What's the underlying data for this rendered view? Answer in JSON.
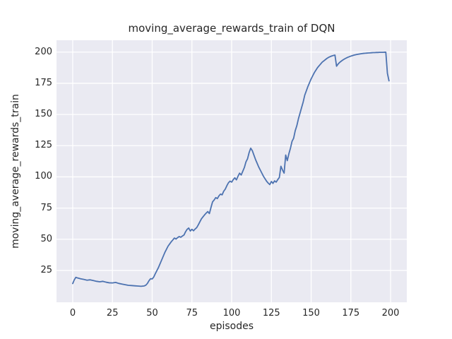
{
  "figure": {
    "background": "#ffffff",
    "axes_background": "#eaeaf2",
    "grid_color": "#ffffff",
    "text_color": "#262626",
    "line_color": "#4c72b0"
  },
  "chart_data": {
    "type": "line",
    "title": "moving_average_rewards_train of DQN",
    "xlabel": "episodes",
    "ylabel": "moving_average_rewards_train",
    "grid": true,
    "legend": false,
    "xlim": [
      -10.2,
      210.2
    ],
    "ylim": [
      -0.5,
      209.5
    ],
    "xticks": [
      0,
      25,
      50,
      75,
      100,
      125,
      150,
      175,
      200
    ],
    "yticks": [
      25,
      50,
      75,
      100,
      125,
      150,
      175,
      200
    ],
    "series": [
      {
        "name": "moving_average_rewards_train",
        "color": "#4c72b0",
        "x": [
          0,
          1,
          2,
          3,
          5,
          7,
          9,
          11,
          13,
          15,
          17,
          19,
          21,
          23,
          25,
          27,
          29,
          31,
          33,
          35,
          37,
          39,
          41,
          43,
          45,
          46,
          47,
          48,
          49,
          50,
          51,
          52,
          54,
          56,
          58,
          60,
          62,
          63,
          64,
          65,
          66,
          67,
          68,
          69,
          70,
          71,
          72,
          73,
          74,
          75,
          76,
          77,
          78,
          79,
          80,
          81,
          82,
          83,
          84,
          85,
          86,
          87,
          88,
          89,
          90,
          91,
          92,
          93,
          94,
          95,
          96,
          97,
          98,
          99,
          100,
          101,
          102,
          103,
          104,
          105,
          106,
          107,
          108,
          109,
          110,
          111,
          112,
          113,
          114,
          115,
          116,
          117,
          118,
          119,
          120,
          121,
          122,
          123,
          124,
          125,
          126,
          127,
          128,
          129,
          130,
          131,
          132,
          133,
          134,
          135,
          136,
          137,
          138,
          139,
          140,
          141,
          142,
          143,
          144,
          145,
          146,
          147,
          148,
          149,
          150,
          151,
          152,
          153,
          154,
          155,
          156,
          157,
          158,
          159,
          160,
          161,
          162,
          163,
          164,
          165,
          166,
          167,
          168,
          169,
          170,
          171,
          172,
          173,
          174,
          175,
          176,
          177,
          178,
          179,
          180,
          181,
          182,
          183,
          184,
          185,
          186,
          187,
          188,
          189,
          190,
          191,
          192,
          193,
          194,
          195,
          196,
          197,
          198,
          199
        ],
        "y": [
          14.5,
          17.5,
          19.5,
          19,
          18.3,
          17.8,
          17.2,
          17.5,
          16.9,
          16.3,
          15.9,
          16.3,
          15.6,
          15.1,
          15,
          15.4,
          14.6,
          14.1,
          13.6,
          13.1,
          12.9,
          12.7,
          12.5,
          12.3,
          12.6,
          13.2,
          14.6,
          16.8,
          18.4,
          18.2,
          19.8,
          22.5,
          27.5,
          33.5,
          39.5,
          44.5,
          48,
          49.5,
          51,
          50.2,
          51.3,
          52.2,
          51.6,
          52.6,
          53.4,
          56,
          58,
          59,
          56.6,
          58,
          56.8,
          58.2,
          59.3,
          61.5,
          64,
          66.4,
          68,
          69.6,
          71,
          72.2,
          70.6,
          75.5,
          80,
          81.5,
          83.4,
          82.6,
          84.8,
          86.2,
          85.6,
          88.5,
          90.2,
          93,
          95.3,
          96.6,
          95.8,
          97.8,
          99.3,
          97.6,
          100.5,
          103,
          101.5,
          104.5,
          107.5,
          112,
          114.5,
          119.5,
          123,
          121,
          117.5,
          114,
          111,
          108,
          105.5,
          103,
          100.5,
          98.5,
          96.5,
          95,
          93.8,
          96.3,
          94.8,
          96.8,
          95.8,
          97.8,
          99.5,
          108.5,
          105.5,
          103,
          117.5,
          113,
          118.5,
          123,
          128.5,
          131,
          137,
          141,
          146.5,
          151,
          155.5,
          160,
          165.5,
          169,
          172.5,
          175.5,
          178.5,
          181,
          183.5,
          185.5,
          187.5,
          189,
          190.5,
          192,
          193,
          194,
          195,
          195.8,
          196.4,
          196.9,
          197.3,
          197.6,
          188.7,
          190.5,
          191.8,
          192.8,
          193.7,
          194.5,
          195.2,
          195.8,
          196.3,
          196.8,
          197.2,
          197.6,
          197.9,
          198.2,
          198.4,
          198.6,
          198.8,
          199,
          199.1,
          199.2,
          199.3,
          199.4,
          199.5,
          199.6,
          199.6,
          199.7,
          199.7,
          199.8,
          199.8,
          199.8,
          199.9,
          199.9,
          183,
          177
        ]
      }
    ]
  }
}
